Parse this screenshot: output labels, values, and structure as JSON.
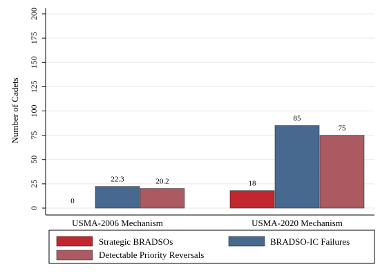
{
  "chart_data": {
    "type": "bar",
    "title": "",
    "xlabel": "",
    "ylabel": "Number of Cadets",
    "ylim": [
      0,
      200
    ],
    "yticks": [
      0,
      25,
      50,
      75,
      100,
      125,
      150,
      175,
      200
    ],
    "categories": [
      "USMA-2006 Mechanism",
      "USMA-2020 Mechanism"
    ],
    "series": [
      {
        "name": "Strategic BRADSOs",
        "color": "#c1272d",
        "values": [
          0,
          18
        ],
        "labels": [
          "0",
          "18"
        ]
      },
      {
        "name": "BRADSO-IC Failures",
        "color": "#47698f",
        "values": [
          22.3,
          85
        ],
        "labels": [
          "22.3",
          "85"
        ]
      },
      {
        "name": "Detectable Priority Reversals",
        "color": "#aa5a60",
        "values": [
          20.2,
          75
        ],
        "labels": [
          "20.2",
          "75"
        ]
      }
    ],
    "grid": true,
    "legend_position": "bottom"
  }
}
